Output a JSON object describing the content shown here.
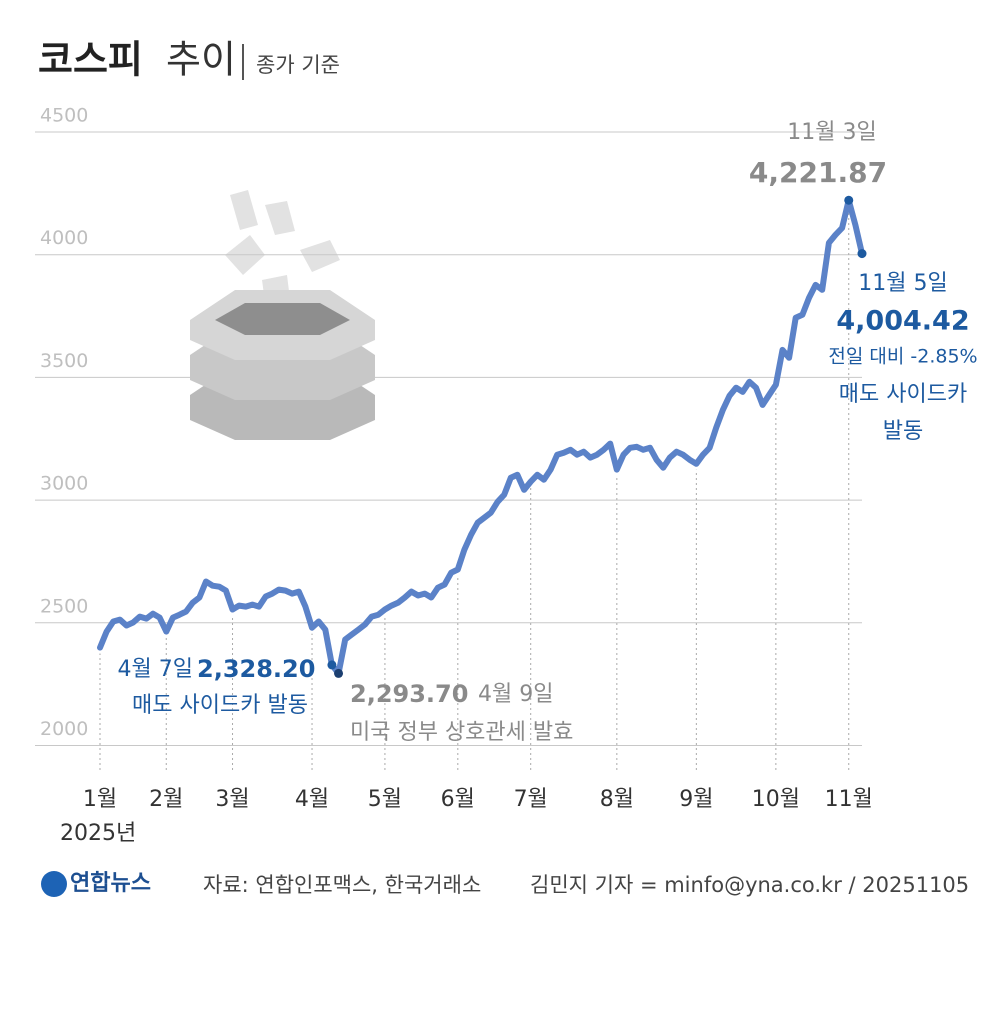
{
  "chart_data": {
    "type": "line",
    "title": "코스피",
    "title_suffix": "추이",
    "subtitle": "종가 기준",
    "year_label": "2025년",
    "categories": [
      "1월",
      null,
      null,
      null,
      null,
      null,
      null,
      null,
      null,
      null,
      "2월",
      null,
      null,
      null,
      null,
      null,
      null,
      null,
      null,
      null,
      "3월",
      null,
      null,
      null,
      null,
      null,
      null,
      null,
      null,
      null,
      null,
      null,
      "4월",
      null,
      null,
      null,
      null,
      null,
      null,
      null,
      null,
      null,
      null,
      "5월",
      null,
      null,
      null,
      null,
      null,
      null,
      null,
      null,
      null,
      null,
      "6월",
      null,
      null,
      null,
      null,
      null,
      null,
      null,
      null,
      null,
      null,
      "7월",
      null,
      null,
      null,
      null,
      null,
      null,
      null,
      null,
      null,
      null,
      null,
      null,
      "8월",
      null,
      null,
      null,
      null,
      null,
      null,
      null,
      null,
      null,
      null,
      null,
      "9월",
      null,
      null,
      null,
      null,
      null,
      null,
      null,
      null,
      null,
      null,
      null,
      "10월",
      null,
      null,
      null,
      null,
      null,
      null,
      null,
      null,
      null,
      null,
      "11월",
      null,
      null
    ],
    "series": [
      {
        "name": "코스피",
        "color": "#5b82c8",
        "values": [
          2399,
          2464,
          2505,
          2513,
          2489,
          2501,
          2525,
          2517,
          2537,
          2521,
          2464,
          2521,
          2533,
          2546,
          2582,
          2603,
          2668,
          2651,
          2647,
          2631,
          2554,
          2570,
          2566,
          2574,
          2566,
          2607,
          2619,
          2635,
          2631,
          2619,
          2627,
          2566,
          2480,
          2505,
          2472,
          2328.2,
          2293.7,
          2432,
          2452,
          2472,
          2493,
          2525,
          2533,
          2554,
          2570,
          2582,
          2603,
          2627,
          2611,
          2619,
          2603,
          2643,
          2656,
          2704,
          2717,
          2798,
          2859,
          2908,
          2928,
          2949,
          2993,
          3022,
          3091,
          3103,
          3042,
          3075,
          3103,
          3083,
          3124,
          3185,
          3193,
          3205,
          3185,
          3197,
          3173,
          3185,
          3205,
          3230,
          3124,
          3185,
          3213,
          3217,
          3205,
          3213,
          3164,
          3132,
          3173,
          3197,
          3185,
          3164,
          3148,
          3185,
          3213,
          3295,
          3368,
          3425,
          3458,
          3441,
          3482,
          3458,
          3388,
          3429,
          3470,
          3612,
          3580,
          3743,
          3755,
          3824,
          3877,
          3857,
          4048,
          4081,
          4109,
          4221.87,
          4121,
          4004.42
        ]
      }
    ],
    "ylim": [
      1900,
      4500
    ],
    "yticks": [
      2000,
      2500,
      3000,
      3500,
      4000,
      4500
    ],
    "grid": true,
    "annotations": [
      {
        "date": "4월 7일",
        "label": "2,328.20",
        "note": "매도 사이드카 발동"
      },
      {
        "date": "4월 9일",
        "label": "2,293.70",
        "note": "미국 정부 상호관세 발효"
      },
      {
        "date": "11월 3일",
        "label": "4,221.87"
      },
      {
        "date": "11월 5일",
        "label": "4,004.42",
        "change": "전일 대비 -2.85%",
        "note_lines": [
          "매도 사이드카",
          "발동"
        ]
      }
    ]
  },
  "footer": {
    "logo": "연합뉴스",
    "source": "자료: 연합인포맥스, 한국거래소",
    "credit": "김민지 기자 = minfo@yna.co.kr / 20251105"
  }
}
